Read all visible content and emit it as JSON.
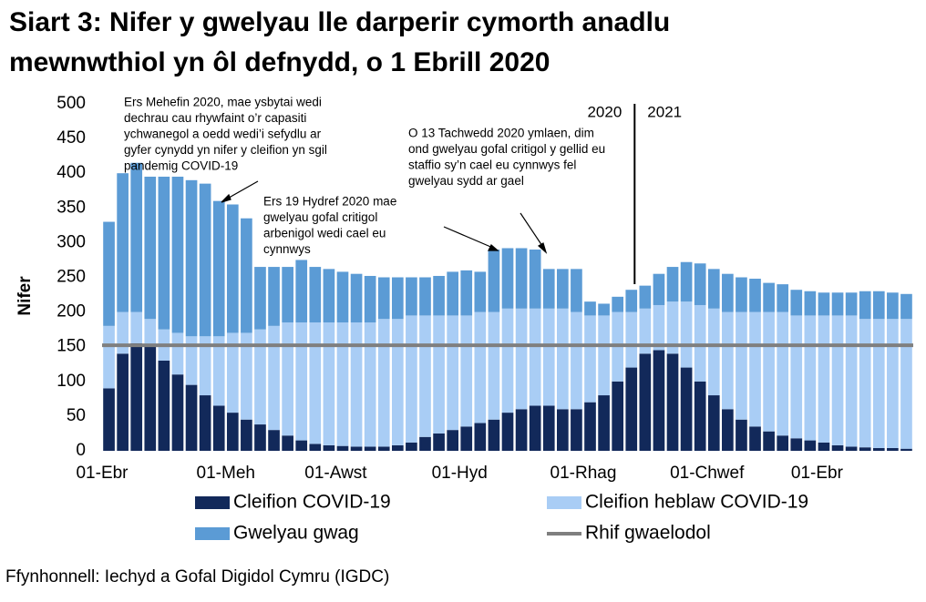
{
  "chart_data": {
    "type": "stacked_bar",
    "title": [
      "Siart 3: Nifer y gwelyau lle darperir cymorth anadlu",
      "mewnwthiol yn ôl defnydd, o 1 Ebrill 2020"
    ],
    "y_label": "Nifer",
    "source": "Ffynhonnell: Iechyd a Gofal Digidol Cymru (IGDC)",
    "categories": [
      "01-Ebr",
      null,
      null,
      null,
      null,
      null,
      null,
      null,
      null,
      "01-Meh",
      null,
      null,
      null,
      null,
      null,
      null,
      null,
      "01-Awst",
      null,
      null,
      null,
      null,
      null,
      null,
      null,
      null,
      "01-Hyd",
      null,
      null,
      null,
      null,
      null,
      null,
      null,
      null,
      "01-Rhag",
      null,
      null,
      null,
      null,
      null,
      null,
      null,
      null,
      "01-Chwef",
      null,
      null,
      null,
      null,
      null,
      null,
      null,
      "01-Ebr",
      null,
      null,
      null,
      null,
      null,
      null
    ],
    "series": [
      {
        "name": "Cleifion COVID-19",
        "color": "#12295a",
        "values": [
          90,
          140,
          155,
          150,
          130,
          110,
          95,
          80,
          65,
          55,
          45,
          38,
          30,
          22,
          15,
          10,
          8,
          7,
          6,
          6,
          6,
          8,
          12,
          20,
          25,
          30,
          35,
          40,
          45,
          55,
          60,
          65,
          65,
          60,
          60,
          70,
          80,
          100,
          120,
          140,
          145,
          140,
          120,
          100,
          80,
          60,
          45,
          35,
          28,
          22,
          18,
          15,
          12,
          8,
          6,
          5,
          4,
          4,
          3
        ]
      },
      {
        "name": "Cleifion heblaw COVID-19",
        "color": "#a9cdf5",
        "values": [
          90,
          60,
          45,
          40,
          45,
          60,
          70,
          85,
          100,
          115,
          125,
          137,
          150,
          163,
          170,
          175,
          177,
          178,
          179,
          179,
          184,
          182,
          183,
          175,
          170,
          165,
          160,
          160,
          155,
          150,
          145,
          140,
          140,
          145,
          140,
          125,
          115,
          100,
          80,
          65,
          65,
          75,
          95,
          110,
          125,
          140,
          155,
          165,
          172,
          178,
          177,
          180,
          183,
          187,
          189,
          185,
          186,
          186,
          187
        ]
      },
      {
        "name": "Gwelyau gwag",
        "color": "#5b9bd5",
        "values": [
          150,
          200,
          215,
          205,
          220,
          225,
          225,
          220,
          195,
          185,
          165,
          90,
          85,
          80,
          90,
          80,
          77,
          73,
          70,
          67,
          60,
          60,
          55,
          55,
          57,
          63,
          65,
          58,
          90,
          87,
          87,
          85,
          57,
          57,
          62,
          20,
          17,
          22,
          32,
          33,
          45,
          50,
          57,
          60,
          57,
          55,
          50,
          48,
          42,
          40,
          37,
          35,
          33,
          33,
          33,
          40,
          40,
          38,
          36
        ]
      }
    ],
    "reference": {
      "name": "Rhif gwaelodol",
      "color": "#7f7f7f",
      "value": 152
    },
    "ylim": [
      0,
      500
    ],
    "yticks": [
      0,
      50,
      100,
      150,
      200,
      250,
      300,
      350,
      400,
      450,
      500
    ],
    "year_labels": [
      "2020",
      "2021"
    ],
    "annotations": [
      [
        "Ers Mehefin 2020, mae ysbytai wedi",
        "dechrau cau rhywfaint o’r capasiti",
        "ychwanegol a oedd wedi’i sefydlu ar",
        "gyfer cynydd yn nifer y cleifion yn sgil",
        "pandemig COVID-19"
      ],
      [
        "Ers 19 Hydref 2020 mae",
        "gwelyau gofal critigol",
        "arbenigol wedi cael eu",
        "cynnwys"
      ],
      [
        "O 13 Tachwedd 2020 ymlaen, dim",
        "ond gwelyau gofal critigol y gellid eu",
        "staffio sy’n cael eu cynnwys fel",
        "gwelyau sydd ar gael"
      ]
    ]
  }
}
